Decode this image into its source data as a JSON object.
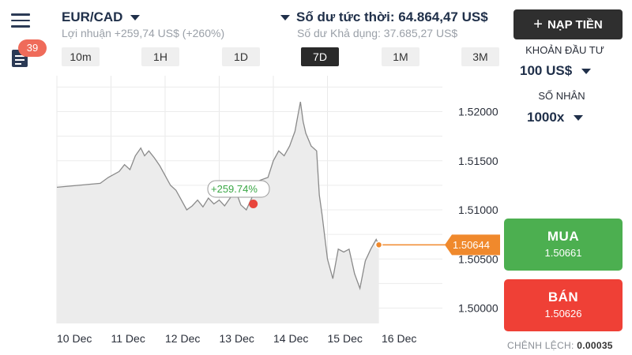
{
  "header": {
    "symbol": "EUR/CAD",
    "profit": "Lợi nhuận +259,74 US$ (+260%)",
    "balance": "Số dư tức thời: 64.864,47 US$",
    "available": "Số dư Khả dụng: 37.685,27 US$",
    "notification_count": "39"
  },
  "timeframes": [
    {
      "label": "10m",
      "active": false
    },
    {
      "label": "1H",
      "active": false
    },
    {
      "label": "1D",
      "active": false
    },
    {
      "label": "7D",
      "active": true
    },
    {
      "label": "1M",
      "active": false
    },
    {
      "label": "3M",
      "active": false
    }
  ],
  "deposit": {
    "label": "NẠP TIỀN"
  },
  "investment": {
    "label": "KHOẢN ĐẦU TƯ",
    "value": "100 US$"
  },
  "multiplier": {
    "label": "SỐ NHÂN",
    "value": "1000x"
  },
  "buy": {
    "label": "MUA",
    "price": "1.50661"
  },
  "sell": {
    "label": "BÁN",
    "price": "1.50626"
  },
  "spread": {
    "label": "CHÊNH LỆCH:",
    "value": "0.00035"
  },
  "chart_data": {
    "type": "area",
    "x_labels": [
      "10 Dec",
      "11 Dec",
      "12 Dec",
      "13 Dec",
      "14 Dec",
      "15 Dec",
      "16 Dec"
    ],
    "y_ticks": [
      "1.52000",
      "1.51500",
      "1.51000",
      "1.50500",
      "1.50000"
    ],
    "current_price": "1.50644",
    "entry_annotation": "+259.74%",
    "colors": {
      "line": "#8a8a8a",
      "fill": "#ececec",
      "price_line": "#f0892c",
      "entry_dot": "#e8453c",
      "annotation": "#3aa745"
    },
    "series": [
      [
        10.0,
        1.5123
      ],
      [
        10.8,
        1.5127
      ],
      [
        10.95,
        1.5133
      ],
      [
        11.15,
        1.5139
      ],
      [
        11.25,
        1.5146
      ],
      [
        11.35,
        1.5141
      ],
      [
        11.45,
        1.5155
      ],
      [
        11.55,
        1.5163
      ],
      [
        11.62,
        1.5155
      ],
      [
        11.7,
        1.516
      ],
      [
        11.8,
        1.5153
      ],
      [
        11.9,
        1.5145
      ],
      [
        12.0,
        1.5135
      ],
      [
        12.1,
        1.5125
      ],
      [
        12.2,
        1.512
      ],
      [
        12.3,
        1.511
      ],
      [
        12.4,
        1.51
      ],
      [
        12.5,
        1.5104
      ],
      [
        12.6,
        1.511
      ],
      [
        12.7,
        1.5103
      ],
      [
        12.8,
        1.5112
      ],
      [
        12.9,
        1.5106
      ],
      [
        13.0,
        1.511
      ],
      [
        13.1,
        1.5104
      ],
      [
        13.2,
        1.5112
      ],
      [
        13.3,
        1.512
      ],
      [
        13.4,
        1.5105
      ],
      [
        13.5,
        1.51
      ],
      [
        13.6,
        1.5112
      ],
      [
        13.75,
        1.513
      ],
      [
        13.9,
        1.5133
      ],
      [
        14.0,
        1.515
      ],
      [
        14.1,
        1.516
      ],
      [
        14.2,
        1.5155
      ],
      [
        14.3,
        1.5165
      ],
      [
        14.4,
        1.518
      ],
      [
        14.45,
        1.5195
      ],
      [
        14.5,
        1.521
      ],
      [
        14.55,
        1.519
      ],
      [
        14.6,
        1.5178
      ],
      [
        14.7,
        1.5165
      ],
      [
        14.8,
        1.516
      ],
      [
        14.85,
        1.5115
      ],
      [
        14.9,
        1.5095
      ],
      [
        15.0,
        1.505
      ],
      [
        15.1,
        1.503
      ],
      [
        15.2,
        1.506
      ],
      [
        15.3,
        1.5057
      ],
      [
        15.4,
        1.506
      ],
      [
        15.5,
        1.5035
      ],
      [
        15.6,
        1.502
      ],
      [
        15.7,
        1.5048
      ],
      [
        15.8,
        1.506
      ],
      [
        15.9,
        1.507
      ],
      [
        15.95,
        1.5064
      ]
    ],
    "entry_point": [
      13.63,
      1.5106
    ]
  }
}
